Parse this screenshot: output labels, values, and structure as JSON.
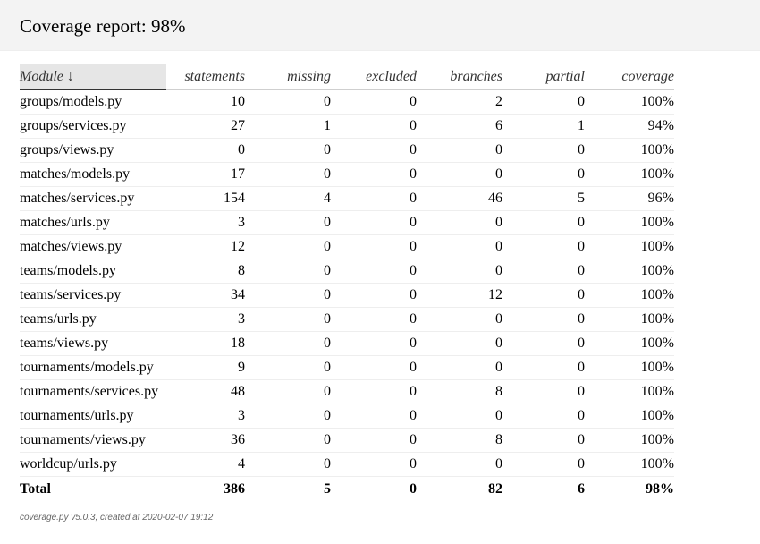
{
  "title": "Coverage report: 98%",
  "columns": {
    "module": "Module ↓",
    "statements": "statements",
    "missing": "missing",
    "excluded": "excluded",
    "branches": "branches",
    "partial": "partial",
    "coverage": "coverage"
  },
  "rows": [
    {
      "module": "groups/models.py",
      "statements": "10",
      "missing": "0",
      "excluded": "0",
      "branches": "2",
      "partial": "0",
      "coverage": "100%"
    },
    {
      "module": "groups/services.py",
      "statements": "27",
      "missing": "1",
      "excluded": "0",
      "branches": "6",
      "partial": "1",
      "coverage": "94%"
    },
    {
      "module": "groups/views.py",
      "statements": "0",
      "missing": "0",
      "excluded": "0",
      "branches": "0",
      "partial": "0",
      "coverage": "100%"
    },
    {
      "module": "matches/models.py",
      "statements": "17",
      "missing": "0",
      "excluded": "0",
      "branches": "0",
      "partial": "0",
      "coverage": "100%"
    },
    {
      "module": "matches/services.py",
      "statements": "154",
      "missing": "4",
      "excluded": "0",
      "branches": "46",
      "partial": "5",
      "coverage": "96%"
    },
    {
      "module": "matches/urls.py",
      "statements": "3",
      "missing": "0",
      "excluded": "0",
      "branches": "0",
      "partial": "0",
      "coverage": "100%"
    },
    {
      "module": "matches/views.py",
      "statements": "12",
      "missing": "0",
      "excluded": "0",
      "branches": "0",
      "partial": "0",
      "coverage": "100%"
    },
    {
      "module": "teams/models.py",
      "statements": "8",
      "missing": "0",
      "excluded": "0",
      "branches": "0",
      "partial": "0",
      "coverage": "100%"
    },
    {
      "module": "teams/services.py",
      "statements": "34",
      "missing": "0",
      "excluded": "0",
      "branches": "12",
      "partial": "0",
      "coverage": "100%"
    },
    {
      "module": "teams/urls.py",
      "statements": "3",
      "missing": "0",
      "excluded": "0",
      "branches": "0",
      "partial": "0",
      "coverage": "100%"
    },
    {
      "module": "teams/views.py",
      "statements": "18",
      "missing": "0",
      "excluded": "0",
      "branches": "0",
      "partial": "0",
      "coverage": "100%"
    },
    {
      "module": "tournaments/models.py",
      "statements": "9",
      "missing": "0",
      "excluded": "0",
      "branches": "0",
      "partial": "0",
      "coverage": "100%"
    },
    {
      "module": "tournaments/services.py",
      "statements": "48",
      "missing": "0",
      "excluded": "0",
      "branches": "8",
      "partial": "0",
      "coverage": "100%"
    },
    {
      "module": "tournaments/urls.py",
      "statements": "3",
      "missing": "0",
      "excluded": "0",
      "branches": "0",
      "partial": "0",
      "coverage": "100%"
    },
    {
      "module": "tournaments/views.py",
      "statements": "36",
      "missing": "0",
      "excluded": "0",
      "branches": "8",
      "partial": "0",
      "coverage": "100%"
    },
    {
      "module": "worldcup/urls.py",
      "statements": "4",
      "missing": "0",
      "excluded": "0",
      "branches": "0",
      "partial": "0",
      "coverage": "100%"
    }
  ],
  "total": {
    "module": "Total",
    "statements": "386",
    "missing": "5",
    "excluded": "0",
    "branches": "82",
    "partial": "6",
    "coverage": "98%"
  },
  "footer": "coverage.py v5.0.3, created at 2020-02-07 19:12"
}
